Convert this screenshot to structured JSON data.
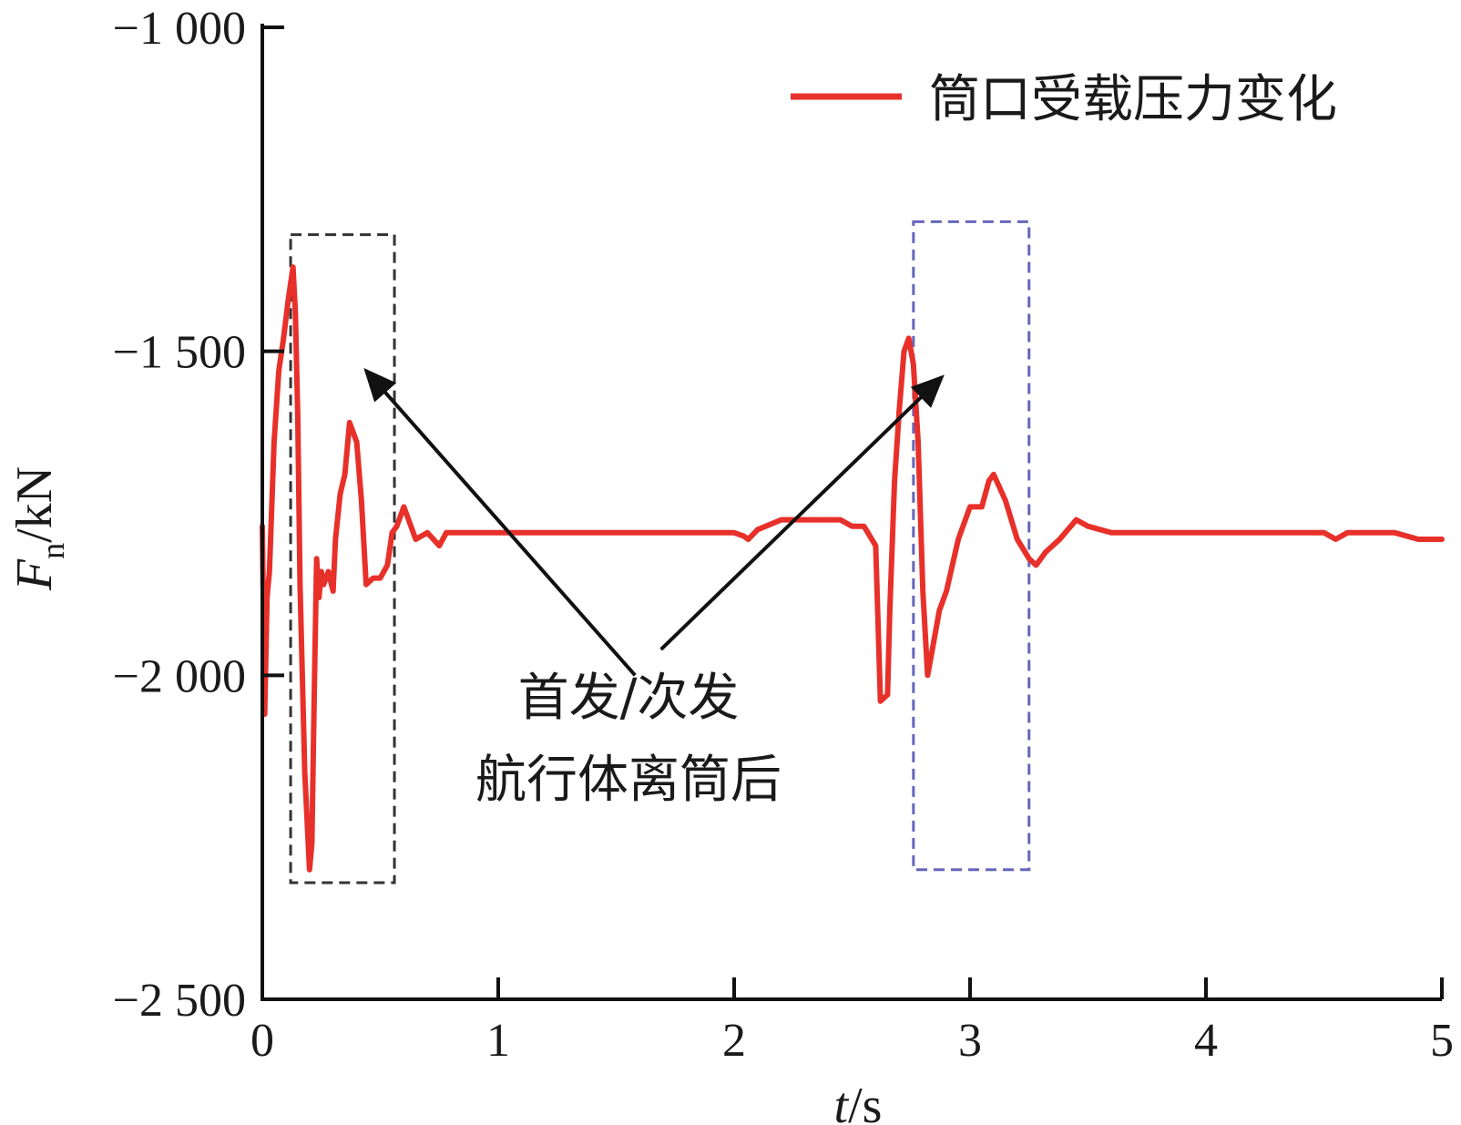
{
  "chart_data": {
    "type": "line",
    "xlabel": {
      "main": "t",
      "unit": "/s"
    },
    "ylabel": {
      "main": "F",
      "sub": "n",
      "unit": "/kN"
    },
    "xlim": [
      0,
      5
    ],
    "ylim": [
      -2500,
      -1000
    ],
    "xticks": [
      0,
      1,
      2,
      3,
      4,
      5
    ],
    "yticks": [
      -2500,
      -2000,
      -1500,
      -1000
    ],
    "xtick_labels": [
      "0",
      "1",
      "2",
      "3",
      "4",
      "5"
    ],
    "ytick_labels": [
      "−2 500",
      "−2 000",
      "−1 500",
      "−1 000"
    ],
    "legend": {
      "position": "top-right",
      "label": "筒口受载压力变化",
      "color": "#e8302a"
    },
    "series": [
      {
        "name": "筒口受载压力变化",
        "color": "#e8302a",
        "x": [
          0.0,
          0.01,
          0.02,
          0.03,
          0.05,
          0.07,
          0.09,
          0.11,
          0.13,
          0.14,
          0.15,
          0.16,
          0.18,
          0.2,
          0.21,
          0.22,
          0.23,
          0.24,
          0.25,
          0.26,
          0.28,
          0.3,
          0.31,
          0.33,
          0.35,
          0.37,
          0.4,
          0.42,
          0.44,
          0.47,
          0.5,
          0.53,
          0.55,
          0.57,
          0.6,
          0.65,
          0.7,
          0.75,
          0.78,
          0.82,
          0.87,
          0.95,
          1.0,
          1.1,
          1.2,
          1.4,
          1.6,
          1.8,
          2.0,
          2.04,
          2.06,
          2.1,
          2.2,
          2.3,
          2.4,
          2.45,
          2.5,
          2.55,
          2.6,
          2.62,
          2.65,
          2.66,
          2.68,
          2.7,
          2.72,
          2.74,
          2.76,
          2.78,
          2.8,
          2.82,
          2.84,
          2.87,
          2.9,
          2.95,
          3.0,
          3.05,
          3.08,
          3.1,
          3.15,
          3.2,
          3.25,
          3.28,
          3.32,
          3.38,
          3.45,
          3.5,
          3.6,
          3.7,
          3.8,
          3.9,
          4.0,
          4.2,
          4.4,
          4.5,
          4.55,
          4.6,
          4.7,
          4.8,
          4.9,
          5.0
        ],
        "y": [
          -1770,
          -2060,
          -1880,
          -1840,
          -1640,
          -1530,
          -1480,
          -1420,
          -1370,
          -1440,
          -1600,
          -1860,
          -2150,
          -2300,
          -2260,
          -2030,
          -1820,
          -1880,
          -1840,
          -1860,
          -1840,
          -1870,
          -1790,
          -1720,
          -1690,
          -1610,
          -1640,
          -1730,
          -1860,
          -1850,
          -1850,
          -1830,
          -1780,
          -1770,
          -1740,
          -1790,
          -1780,
          -1800,
          -1780,
          -1780,
          -1780,
          -1780,
          -1780,
          -1780,
          -1780,
          -1780,
          -1780,
          -1780,
          -1780,
          -1785,
          -1790,
          -1775,
          -1760,
          -1760,
          -1760,
          -1760,
          -1770,
          -1770,
          -1800,
          -2040,
          -2030,
          -1900,
          -1700,
          -1590,
          -1500,
          -1480,
          -1520,
          -1640,
          -1870,
          -2000,
          -1960,
          -1900,
          -1870,
          -1790,
          -1740,
          -1740,
          -1700,
          -1690,
          -1730,
          -1790,
          -1820,
          -1830,
          -1810,
          -1790,
          -1760,
          -1770,
          -1780,
          -1780,
          -1780,
          -1780,
          -1780,
          -1780,
          -1780,
          -1780,
          -1790,
          -1780,
          -1780,
          -1780,
          -1790,
          -1790
        ]
      }
    ],
    "annotations": {
      "text_line1": "首发/次发",
      "text_line2": "航行体离筒后",
      "boxes": [
        {
          "name": "first-launch",
          "x0": 0.12,
          "x1": 0.56,
          "y_top": -1320,
          "y_bottom": -2320,
          "color": "#333333"
        },
        {
          "name": "second-launch",
          "x0": 2.76,
          "x1": 3.25,
          "y_top": -1300,
          "y_bottom": -2300,
          "color": "#6666bb"
        }
      ],
      "arrows": [
        {
          "from": [
            1.58,
            -2000
          ],
          "to": [
            0.44,
            -1530
          ]
        },
        {
          "from": [
            1.69,
            -1960
          ],
          "to": [
            2.88,
            -1540
          ]
        }
      ]
    }
  }
}
